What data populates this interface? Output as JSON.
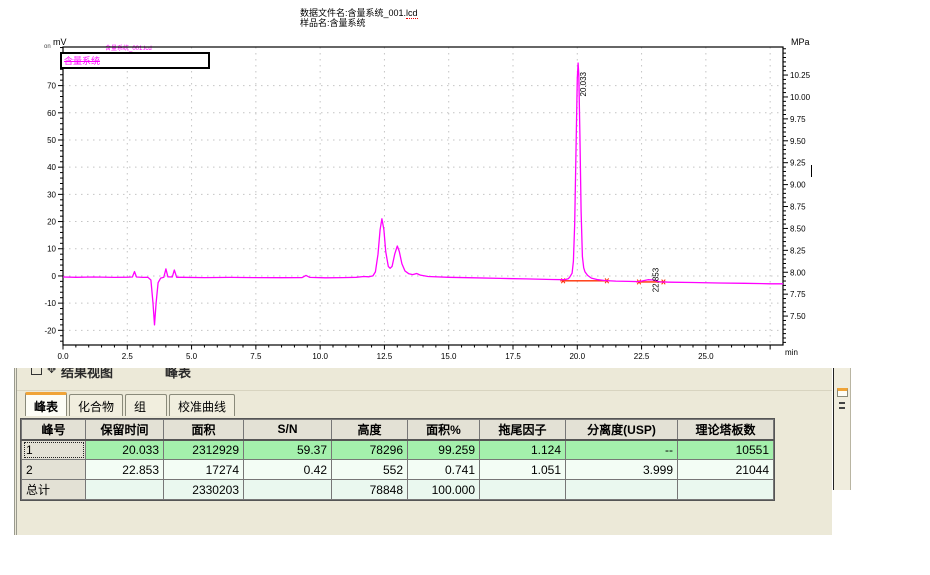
{
  "header": {
    "line1_prefix": "数据文件名:含量系统_001.",
    "line1_ext": "lcd",
    "line2": "样品名:含量系统"
  },
  "chart": {
    "y_left_unit": "mV",
    "y_left_prefix": "on",
    "y_right_unit": "MPa",
    "x_unit": "min",
    "legend_text": "含量系统",
    "overlay_text": "含量系统_001.lcd",
    "trace_color": "#ff00ff",
    "marker_color": "#ff2d00",
    "grid_color": "#c4c4c4"
  },
  "chart_data": {
    "type": "line",
    "title": "",
    "xlabel": "min",
    "ylabel_left": "mV",
    "ylabel_right": "MPa",
    "xlim": [
      0,
      28
    ],
    "ylim_left": [
      -25.4,
      84.2
    ],
    "ylim_right": [
      7.17,
      10.57
    ],
    "x_major_step": 2.5,
    "x_minor_step": 0.5,
    "x_label_max": 25.0,
    "y_major_step": 10,
    "y_minor_step": 2,
    "right_major_step": 0.25,
    "right_minor_step": 0.05,
    "right_tick_min": 7.5,
    "right_tick_max": 10.25,
    "grid": "dotted",
    "legend_position": "top-left",
    "series": [
      {
        "name": "含量系统",
        "color": "#ff00ff",
        "points": [
          [
            0,
            -0.4
          ],
          [
            0.5,
            -0.5
          ],
          [
            1.2,
            -0.4
          ],
          [
            2.0,
            -0.55
          ],
          [
            2.5,
            -0.45
          ],
          [
            2.7,
            -0.4
          ],
          [
            2.78,
            1.6
          ],
          [
            2.86,
            -0.4
          ],
          [
            3.1,
            -0.55
          ],
          [
            3.3,
            -0.5
          ],
          [
            3.42,
            -1.5
          ],
          [
            3.5,
            -10
          ],
          [
            3.56,
            -18
          ],
          [
            3.62,
            -10
          ],
          [
            3.7,
            -2.5
          ],
          [
            3.8,
            -0.8
          ],
          [
            3.92,
            -0.5
          ],
          [
            4.0,
            2.6
          ],
          [
            4.08,
            -0.3
          ],
          [
            4.25,
            -0.4
          ],
          [
            4.33,
            2.2
          ],
          [
            4.42,
            -0.5
          ],
          [
            4.6,
            -0.5
          ],
          [
            5.5,
            -0.6
          ],
          [
            6.5,
            -0.55
          ],
          [
            7.5,
            -0.6
          ],
          [
            8.5,
            -0.65
          ],
          [
            9.3,
            -0.6
          ],
          [
            9.45,
            0.2
          ],
          [
            9.6,
            -0.55
          ],
          [
            10.2,
            -0.7
          ],
          [
            10.9,
            -0.6
          ],
          [
            11.4,
            -0.5
          ],
          [
            11.7,
            -0.2
          ],
          [
            11.9,
            -0.3
          ],
          [
            12.05,
            0
          ],
          [
            12.15,
            1.5
          ],
          [
            12.25,
            8
          ],
          [
            12.33,
            17
          ],
          [
            12.4,
            21
          ],
          [
            12.48,
            17
          ],
          [
            12.55,
            9
          ],
          [
            12.65,
            3.5
          ],
          [
            12.72,
            2.8
          ],
          [
            12.8,
            3.5
          ],
          [
            12.9,
            8
          ],
          [
            13.0,
            11
          ],
          [
            13.08,
            9
          ],
          [
            13.18,
            4.5
          ],
          [
            13.3,
            1.8
          ],
          [
            13.45,
            0.8
          ],
          [
            13.6,
            0.5
          ],
          [
            13.75,
            0.9
          ],
          [
            13.9,
            0.3
          ],
          [
            14.2,
            -0.2
          ],
          [
            15,
            -0.5
          ],
          [
            16,
            -0.7
          ],
          [
            17,
            -0.9
          ],
          [
            18,
            -1.1
          ],
          [
            19,
            -1.3
          ],
          [
            19.5,
            -1.4
          ],
          [
            19.65,
            -1.0
          ],
          [
            19.7,
            -0.5
          ],
          [
            19.8,
            1.0
          ],
          [
            19.85,
            5.4
          ],
          [
            19.9,
            19.3
          ],
          [
            19.95,
            46.2
          ],
          [
            20.0,
            72.7
          ],
          [
            20.03,
            78.3
          ],
          [
            20.06,
            74
          ],
          [
            20.1,
            52
          ],
          [
            20.15,
            23.8
          ],
          [
            20.2,
            7.1
          ],
          [
            20.25,
            3.0
          ],
          [
            20.3,
            1.5
          ],
          [
            20.4,
            0.2
          ],
          [
            20.55,
            -0.8
          ],
          [
            20.8,
            -1.4
          ],
          [
            21.1,
            -1.7
          ],
          [
            21.5,
            -1.9
          ],
          [
            22.0,
            -2.0
          ],
          [
            22.4,
            -2.1
          ],
          [
            22.75,
            -1.4
          ],
          [
            22.95,
            -1.5
          ],
          [
            23.2,
            -2.2
          ],
          [
            23.6,
            -2.3
          ],
          [
            24.5,
            -2.4
          ],
          [
            25.5,
            -2.6
          ],
          [
            26.5,
            -2.7
          ],
          [
            27.5,
            -2.9
          ],
          [
            28,
            -2.9
          ]
        ]
      }
    ],
    "peak_labels": [
      {
        "text": "20.033",
        "t": 20.033,
        "bottom_mv": 66
      },
      {
        "text": "22.853",
        "t": 22.853,
        "bottom_mv": -6
      }
    ],
    "integration_baselines": [
      {
        "t1": 19.45,
        "t2": 21.15,
        "mv": -1.8
      },
      {
        "t1": 22.4,
        "t2": 23.35,
        "mv": -2.2
      }
    ]
  },
  "panel": {
    "title_left": "结果视图",
    "title_right": "峰表",
    "tabs": [
      {
        "label": "峰表",
        "active": true
      },
      {
        "label": "化合物",
        "active": false
      },
      {
        "label": "组",
        "active": false
      },
      {
        "label": "校准曲线",
        "active": false
      }
    ],
    "table": {
      "headers": [
        "峰号",
        "保留时间",
        "面积",
        "S/N",
        "高度",
        "面积%",
        "拖尾因子",
        "分离度(USP)",
        "理论塔板数"
      ],
      "rows": [
        {
          "cells": [
            "1",
            "20.033",
            "2312929",
            "59.37",
            "78296",
            "99.259",
            "1.124",
            "--",
            "10551"
          ],
          "highlight": true
        },
        {
          "cells": [
            "2",
            "22.853",
            "17274",
            "0.42",
            "552",
            "0.741",
            "1.051",
            "3.999",
            "21044"
          ],
          "highlight": false
        },
        {
          "cells": [
            "总计",
            "",
            "2330203",
            "",
            "78848",
            "100.000",
            "",
            "",
            ""
          ],
          "highlight": false,
          "total": true
        }
      ]
    },
    "colors": {
      "panel_bg": "#ece9d8",
      "row_highlight": "#a4f0ac",
      "row_normal": "#f3fdf5",
      "row_total": "#eaf8ef",
      "header_bg": "#e3e1d5",
      "tab_accent": "#f0a438"
    }
  }
}
